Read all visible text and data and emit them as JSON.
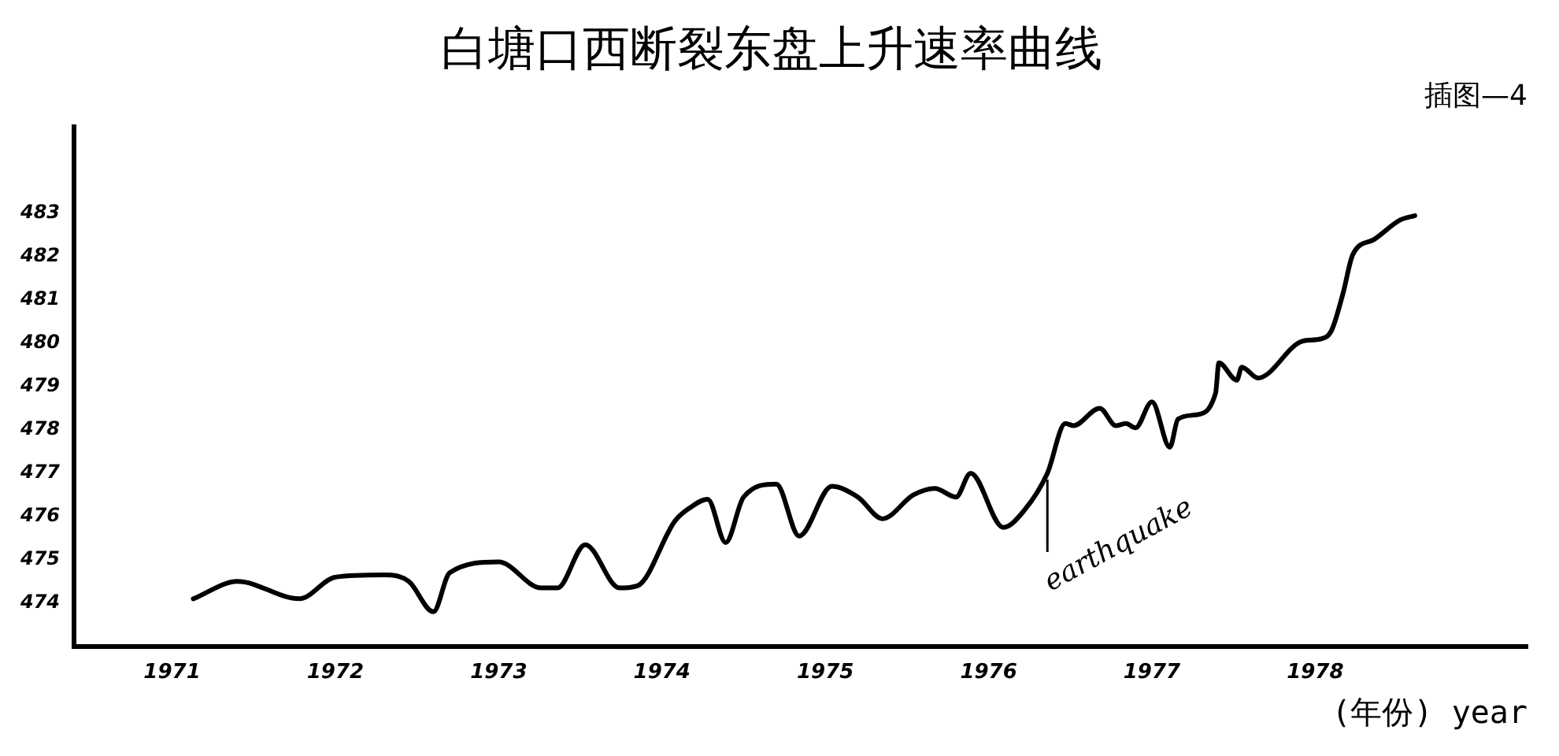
{
  "chart_data": {
    "type": "line",
    "title": "白塘口西断裂东盘上升速率曲线",
    "subtitle": "插图—4",
    "xlabel": "(年份) year",
    "xlim": [
      1970.4,
      1979.3
    ],
    "xticks": [
      1971,
      1972,
      1973,
      1974,
      1975,
      1976,
      1977,
      1978
    ],
    "ylim": [
      473,
      485
    ],
    "yticks": [
      474,
      475,
      476,
      477,
      478,
      479,
      480,
      481,
      482,
      483
    ],
    "grid": false,
    "legend": false,
    "marker": "none",
    "line_style": "solid",
    "annotations": [
      {
        "text": "earthquake",
        "x": 1976.36,
        "y": 477
      }
    ],
    "series": [
      {
        "color": "#000000",
        "x": [
          1971.13,
          1971.4,
          1971.78,
          1972.0,
          1972.3,
          1972.45,
          1972.6,
          1972.7,
          1973.0,
          1973.26,
          1973.36,
          1973.53,
          1973.74,
          1973.85,
          1974.08,
          1974.17,
          1974.28,
          1974.39,
          1974.5,
          1974.7,
          1974.84,
          1975.04,
          1975.2,
          1975.35,
          1975.54,
          1975.67,
          1975.8,
          1975.89,
          1976.09,
          1976.22,
          1976.36,
          1976.47,
          1976.52,
          1976.68,
          1976.78,
          1976.84,
          1976.9,
          1977.0,
          1977.11,
          1977.16,
          1977.27,
          1977.39,
          1977.41,
          1977.52,
          1977.55,
          1977.65,
          1977.92,
          1978.03,
          1978.1,
          1978.17,
          1978.23,
          1978.36,
          1978.52,
          1978.61
        ],
        "values": [
          474.1,
          474.5,
          474.1,
          474.6,
          474.65,
          474.5,
          473.8,
          474.7,
          474.95,
          474.35,
          474.35,
          475.35,
          474.35,
          474.4,
          475.9,
          476.2,
          476.4,
          475.4,
          476.45,
          476.75,
          475.55,
          476.7,
          476.45,
          475.95,
          476.5,
          476.65,
          476.45,
          477.0,
          475.75,
          476.15,
          477.0,
          478.15,
          478.1,
          478.5,
          478.1,
          478.15,
          478.05,
          478.65,
          477.6,
          478.25,
          478.35,
          478.85,
          479.55,
          479.15,
          479.45,
          479.2,
          480.05,
          480.1,
          480.3,
          481.15,
          482.05,
          482.4,
          482.85,
          482.95
        ]
      }
    ]
  }
}
